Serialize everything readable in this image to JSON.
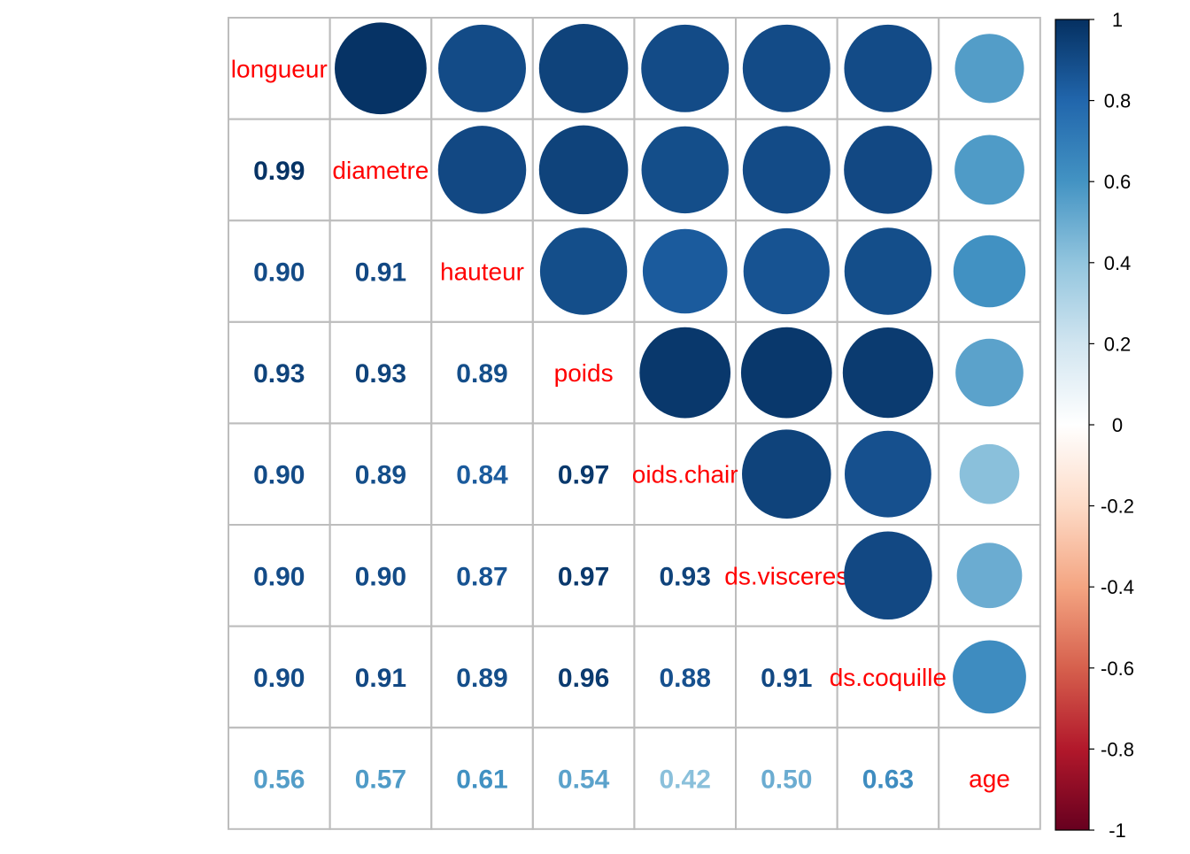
{
  "chart_data": {
    "type": "heatmap",
    "variables": [
      "longueur",
      "diametre",
      "hauteur",
      "poids",
      "poids.chair",
      "poids.visceres",
      "poids.coquille",
      "age"
    ],
    "diagonal_labels": [
      "longueur",
      "diametre",
      "hauteur",
      "poids",
      "oids.chair",
      "ds.visceres",
      "ds.coquille",
      "age"
    ],
    "matrix": [
      [
        1.0,
        0.99,
        0.9,
        0.93,
        0.9,
        0.9,
        0.9,
        0.56
      ],
      [
        0.99,
        1.0,
        0.91,
        0.93,
        0.89,
        0.9,
        0.91,
        0.57
      ],
      [
        0.9,
        0.91,
        1.0,
        0.89,
        0.84,
        0.87,
        0.89,
        0.61
      ],
      [
        0.93,
        0.93,
        0.89,
        1.0,
        0.97,
        0.97,
        0.96,
        0.54
      ],
      [
        0.9,
        0.89,
        0.84,
        0.97,
        1.0,
        0.93,
        0.88,
        0.42
      ],
      [
        0.9,
        0.9,
        0.87,
        0.97,
        0.93,
        1.0,
        0.91,
        0.5
      ],
      [
        0.9,
        0.91,
        0.89,
        0.96,
        0.88,
        0.91,
        1.0,
        0.63
      ],
      [
        0.56,
        0.57,
        0.61,
        0.54,
        0.42,
        0.5,
        0.63,
        1.0
      ]
    ],
    "lower": "number",
    "upper": "circle",
    "diagonal": "label",
    "label_color": "#ff0000",
    "colorbar": {
      "min": -1,
      "max": 1,
      "ticks": [
        1,
        0.8,
        0.6,
        0.4,
        0.2,
        0,
        -0.2,
        -0.4,
        -0.6,
        -0.8,
        -1
      ],
      "tick_labels": [
        "1",
        "0.8",
        "0.6",
        "0.4",
        "0.2",
        "0",
        "-0.2",
        "-0.4",
        "-0.6",
        "-0.8",
        "-1"
      ],
      "colors": [
        "#67001F",
        "#B2182B",
        "#D6604D",
        "#F4A582",
        "#FDDBC7",
        "#FFFFFF",
        "#D1E5F0",
        "#92C5DE",
        "#4393C3",
        "#2166AC",
        "#053061"
      ]
    }
  }
}
